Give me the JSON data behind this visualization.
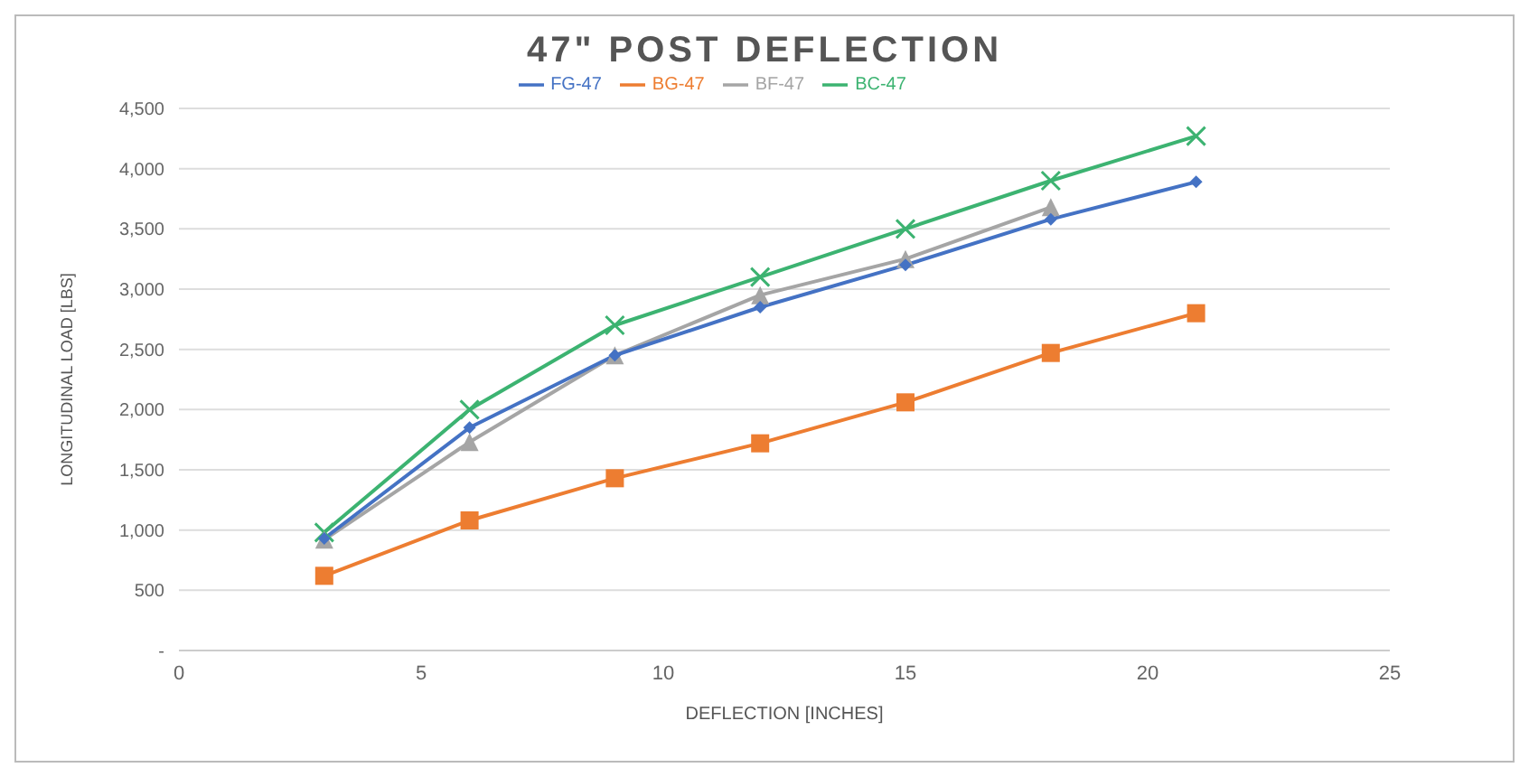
{
  "chart_data": {
    "type": "line",
    "title": "47\" POST DEFLECTION",
    "xlabel": "DEFLECTION [INCHES]",
    "ylabel": "LONGITUDINAL LOAD [LBS]",
    "x": [
      3,
      6,
      9,
      12,
      15,
      18,
      21
    ],
    "series": [
      {
        "name": "FG-47",
        "color": "#4472c4",
        "marker": "diamond",
        "values": [
          930,
          1850,
          2450,
          2850,
          3200,
          3580,
          3890
        ]
      },
      {
        "name": "BG-47",
        "color": "#ed7d31",
        "marker": "square",
        "values": [
          620,
          1080,
          1430,
          1720,
          2060,
          2470,
          2800
        ]
      },
      {
        "name": "BF-47",
        "color": "#a5a5a5",
        "marker": "triangle",
        "values": [
          920,
          1730,
          2450,
          2950,
          3250,
          3680,
          null
        ]
      },
      {
        "name": "BC-47",
        "color": "#3cb371",
        "marker": "cross",
        "values": [
          980,
          2000,
          2700,
          3100,
          3500,
          3900,
          4270
        ]
      }
    ],
    "xlim": [
      0,
      25
    ],
    "xticks": [
      0,
      5,
      10,
      15,
      20,
      25
    ],
    "ylim": [
      0,
      4500
    ],
    "yticks": [
      {
        "value": 0,
        "label": "-"
      },
      {
        "value": 500,
        "label": "500"
      },
      {
        "value": 1000,
        "label": "1,000"
      },
      {
        "value": 1500,
        "label": "1,500"
      },
      {
        "value": 2000,
        "label": "2,000"
      },
      {
        "value": 2500,
        "label": "2,500"
      },
      {
        "value": 3000,
        "label": "3,000"
      },
      {
        "value": 3500,
        "label": "3,500"
      },
      {
        "value": 4000,
        "label": "4,000"
      },
      {
        "value": 4500,
        "label": "4,500"
      }
    ],
    "grid": "y",
    "legend": "top"
  }
}
